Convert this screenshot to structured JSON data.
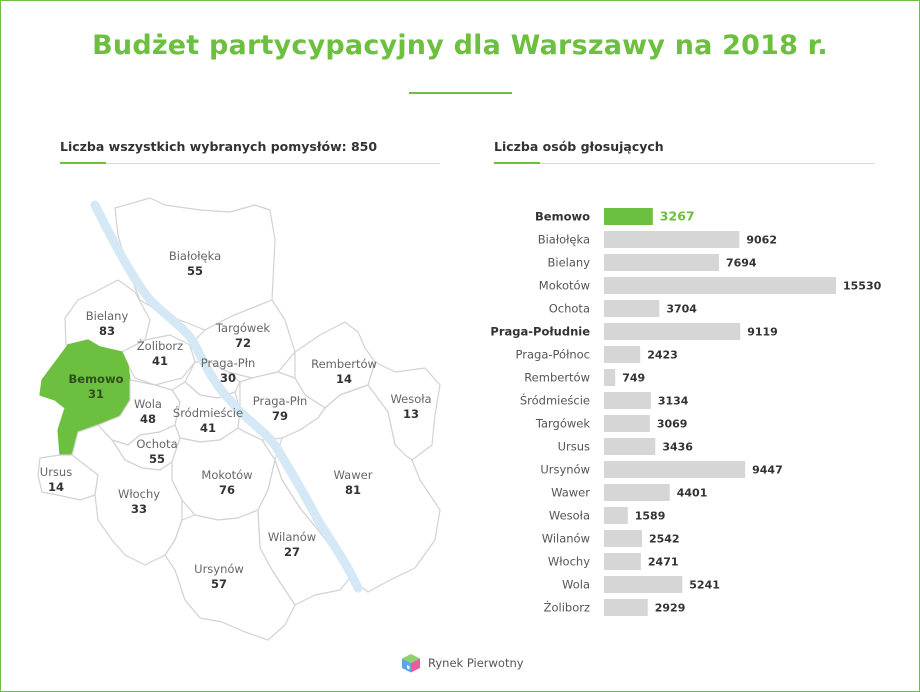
{
  "title": "Budżet partycypacyjny dla Warszawy na 2018 r.",
  "left_section": {
    "title": "Liczba wszystkich wybranych pomysłów: 850"
  },
  "right_section": {
    "title": "Liczba osób głosujących"
  },
  "colors": {
    "accent": "#6cbf3f",
    "bar": "#d6d6d6",
    "river": "#d4e9f5",
    "district_fill": "#ffffff",
    "district_stroke": "#d2d2d2"
  },
  "map_districts": [
    {
      "name": "Białołęka",
      "value": 55
    },
    {
      "name": "Bielany",
      "value": 83
    },
    {
      "name": "Targówek",
      "value": 72
    },
    {
      "name": "Żoliborz",
      "value": 41
    },
    {
      "name": "Bemowo",
      "value": 31,
      "highlight": true
    },
    {
      "name": "Praga-Płn",
      "value": 30
    },
    {
      "name": "Rembertów",
      "value": 14
    },
    {
      "name": "Wesoła",
      "value": 13
    },
    {
      "name": "Wola",
      "value": 48
    },
    {
      "name": "Śródmieście",
      "value": 41
    },
    {
      "name": "Praga-Płn",
      "value": 79
    },
    {
      "name": "Ochota",
      "value": 55
    },
    {
      "name": "Ursus",
      "value": 14
    },
    {
      "name": "Mokotów",
      "value": 76
    },
    {
      "name": "Wawer",
      "value": 81
    },
    {
      "name": "Włochy",
      "value": 33
    },
    {
      "name": "Wilanów",
      "value": 27
    },
    {
      "name": "Ursynów",
      "value": 57
    }
  ],
  "chart_data": {
    "type": "bar",
    "orientation": "horizontal",
    "title": "Liczba osób głosujących",
    "categories": [
      "Bemowo",
      "Białołęka",
      "Bielany",
      "Mokotów",
      "Ochota",
      "Praga-Południe",
      "Praga-Północ",
      "Rembertów",
      "Śródmieście",
      "Targówek",
      "Ursus",
      "Ursynów",
      "Wawer",
      "Wesoła",
      "Wilanów",
      "Włochy",
      "Wola",
      "Żoliborz"
    ],
    "values": [
      3267,
      9062,
      7694,
      15530,
      3704,
      9119,
      2423,
      749,
      3134,
      3069,
      3436,
      9447,
      4401,
      1589,
      2542,
      2471,
      5241,
      2929
    ],
    "highlight": "Bemowo",
    "bold_labels": [
      "Bemowo",
      "Praga-Południe"
    ],
    "grid": false,
    "legend": "none"
  },
  "logo": {
    "name": "Rynek Pierwotny"
  }
}
